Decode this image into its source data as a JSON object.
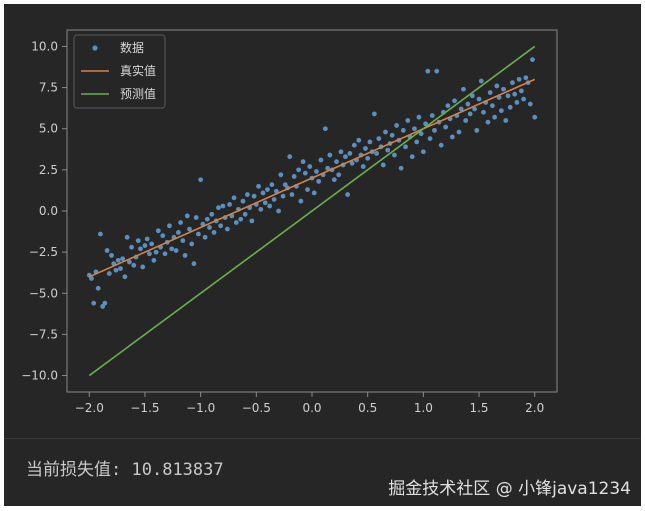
{
  "loss": {
    "label": "当前损失值:",
    "value": "10.813837"
  },
  "watermark": "掘金技术社区 @ 小锋java1234",
  "colors": {
    "background": "#262626",
    "data_points": "#5b8fc0",
    "true_line": "#d9823e",
    "pred_line": "#6ab04c",
    "axes": "#8a8a8a",
    "text": "#cfcfcf"
  },
  "chart_data": {
    "type": "scatter",
    "title": "",
    "xlabel": "",
    "ylabel": "",
    "xlim": [
      -2.2,
      2.2
    ],
    "ylim": [
      -11,
      11
    ],
    "xticks": [
      -2.0,
      -1.5,
      -1.0,
      -0.5,
      0.0,
      0.5,
      1.0,
      1.5,
      2.0
    ],
    "xtick_labels": [
      "−2.0",
      "−1.5",
      "−1.0",
      "−0.5",
      "0.0",
      "0.5",
      "1.0",
      "1.5",
      "2.0"
    ],
    "yticks": [
      10.0,
      7.5,
      5.0,
      2.5,
      0.0,
      -2.5,
      -5.0,
      -7.5,
      -10.0
    ],
    "ytick_labels": [
      "10.0",
      "7.5",
      "5.0",
      "2.5",
      "0.0",
      "−2.5",
      "−5.0",
      "−7.5",
      "−10.0"
    ],
    "grid": false,
    "legend_position": "top-left",
    "series": [
      {
        "name": "数据",
        "type": "scatter",
        "points": [
          [
            -2.0,
            -3.9
          ],
          [
            -1.98,
            -4.1
          ],
          [
            -1.96,
            -5.6
          ],
          [
            -1.94,
            -3.7
          ],
          [
            -1.92,
            -4.7
          ],
          [
            -1.9,
            -1.4
          ],
          [
            -1.88,
            -5.8
          ],
          [
            -1.86,
            -5.6
          ],
          [
            -1.84,
            -2.4
          ],
          [
            -1.82,
            -3.8
          ],
          [
            -1.8,
            -2.7
          ],
          [
            -1.78,
            -3.2
          ],
          [
            -1.76,
            -3.6
          ],
          [
            -1.74,
            -3.0
          ],
          [
            -1.72,
            -3.5
          ],
          [
            -1.7,
            -2.9
          ],
          [
            -1.68,
            -4.0
          ],
          [
            -1.66,
            -1.6
          ],
          [
            -1.64,
            -3.1
          ],
          [
            -1.62,
            -2.2
          ],
          [
            -1.6,
            -3.3
          ],
          [
            -1.58,
            -2.8
          ],
          [
            -1.56,
            -1.8
          ],
          [
            -1.54,
            -2.3
          ],
          [
            -1.52,
            -3.4
          ],
          [
            -1.5,
            -2.1
          ],
          [
            -1.48,
            -1.7
          ],
          [
            -1.46,
            -2.6
          ],
          [
            -1.44,
            -2.0
          ],
          [
            -1.42,
            -3.0
          ],
          [
            -1.4,
            -2.5
          ],
          [
            -1.38,
            -1.2
          ],
          [
            -1.36,
            -2.2
          ],
          [
            -1.34,
            -1.5
          ],
          [
            -1.32,
            -2.6
          ],
          [
            -1.3,
            -1.9
          ],
          [
            -1.28,
            -0.9
          ],
          [
            -1.26,
            -2.3
          ],
          [
            -1.24,
            -1.6
          ],
          [
            -1.22,
            -2.4
          ],
          [
            -1.2,
            -1.3
          ],
          [
            -1.18,
            -0.7
          ],
          [
            -1.16,
            -1.8
          ],
          [
            -1.14,
            -2.7
          ],
          [
            -1.12,
            -0.3
          ],
          [
            -1.1,
            -1.1
          ],
          [
            -1.08,
            -2.0
          ],
          [
            -1.06,
            -3.2
          ],
          [
            -1.04,
            -0.4
          ],
          [
            -1.02,
            -1.4
          ],
          [
            -1.0,
            1.9
          ],
          [
            -0.98,
            -0.8
          ],
          [
            -0.96,
            -1.6
          ],
          [
            -0.94,
            -0.5
          ],
          [
            -0.92,
            -1.0
          ],
          [
            -0.9,
            -0.2
          ],
          [
            -0.88,
            -1.3
          ],
          [
            -0.86,
            -0.6
          ],
          [
            -0.84,
            0.2
          ],
          [
            -0.82,
            -0.9
          ],
          [
            -0.8,
            0.3
          ],
          [
            -0.78,
            -0.4
          ],
          [
            -0.76,
            -1.1
          ],
          [
            -0.74,
            0.4
          ],
          [
            -0.72,
            -0.3
          ],
          [
            -0.7,
            0.8
          ],
          [
            -0.68,
            -0.7
          ],
          [
            -0.66,
            0.1
          ],
          [
            -0.64,
            -0.5
          ],
          [
            -0.62,
            0.6
          ],
          [
            -0.6,
            -0.2
          ],
          [
            -0.58,
            1.0
          ],
          [
            -0.56,
            0.2
          ],
          [
            -0.54,
            -0.6
          ],
          [
            -0.52,
            0.9
          ],
          [
            -0.5,
            0.4
          ],
          [
            -0.48,
            1.5
          ],
          [
            -0.46,
            0.1
          ],
          [
            -0.44,
            1.1
          ],
          [
            -0.42,
            0.5
          ],
          [
            -0.4,
            1.3
          ],
          [
            -0.38,
            0.3
          ],
          [
            -0.36,
            1.6
          ],
          [
            -0.34,
            0.7
          ],
          [
            -0.32,
            1.2
          ],
          [
            -0.3,
            0.0
          ],
          [
            -0.28,
            2.2
          ],
          [
            -0.26,
            0.9
          ],
          [
            -0.24,
            1.6
          ],
          [
            -0.22,
            1.4
          ],
          [
            -0.2,
            3.3
          ],
          [
            -0.18,
            1.0
          ],
          [
            -0.16,
            2.1
          ],
          [
            -0.14,
            1.5
          ],
          [
            -0.12,
            2.5
          ],
          [
            -0.1,
            0.6
          ],
          [
            -0.08,
            3.0
          ],
          [
            -0.06,
            2.3
          ],
          [
            -0.04,
            1.3
          ],
          [
            -0.02,
            2.7
          ],
          [
            0.0,
            2.0
          ],
          [
            0.02,
            1.1
          ],
          [
            0.04,
            2.4
          ],
          [
            0.06,
            1.8
          ],
          [
            0.08,
            3.1
          ],
          [
            0.1,
            2.2
          ],
          [
            0.12,
            5.0
          ],
          [
            0.14,
            2.6
          ],
          [
            0.16,
            3.4
          ],
          [
            0.18,
            2.5
          ],
          [
            0.2,
            1.9
          ],
          [
            0.22,
            3.0
          ],
          [
            0.24,
            2.2
          ],
          [
            0.26,
            3.6
          ],
          [
            0.28,
            2.8
          ],
          [
            0.3,
            3.3
          ],
          [
            0.32,
            1.0
          ],
          [
            0.34,
            3.5
          ],
          [
            0.36,
            2.9
          ],
          [
            0.38,
            4.0
          ],
          [
            0.4,
            3.1
          ],
          [
            0.42,
            4.3
          ],
          [
            0.44,
            3.4
          ],
          [
            0.46,
            2.7
          ],
          [
            0.48,
            3.8
          ],
          [
            0.5,
            3.2
          ],
          [
            0.52,
            4.2
          ],
          [
            0.54,
            3.6
          ],
          [
            0.56,
            5.9
          ],
          [
            0.58,
            3.5
          ],
          [
            0.6,
            4.4
          ],
          [
            0.62,
            3.9
          ],
          [
            0.64,
            2.8
          ],
          [
            0.66,
            4.8
          ],
          [
            0.68,
            3.7
          ],
          [
            0.7,
            4.1
          ],
          [
            0.72,
            4.6
          ],
          [
            0.74,
            3.4
          ],
          [
            0.76,
            5.2
          ],
          [
            0.78,
            4.3
          ],
          [
            0.8,
            2.6
          ],
          [
            0.82,
            4.9
          ],
          [
            0.84,
            3.9
          ],
          [
            0.86,
            5.5
          ],
          [
            0.88,
            4.5
          ],
          [
            0.9,
            3.3
          ],
          [
            0.92,
            5.0
          ],
          [
            0.94,
            4.2
          ],
          [
            0.96,
            5.7
          ],
          [
            0.98,
            4.7
          ],
          [
            1.0,
            3.6
          ],
          [
            1.02,
            5.3
          ],
          [
            1.04,
            8.5
          ],
          [
            1.06,
            4.4
          ],
          [
            1.08,
            5.8
          ],
          [
            1.1,
            4.9
          ],
          [
            1.12,
            8.5
          ],
          [
            1.14,
            5.4
          ],
          [
            1.16,
            4.0
          ],
          [
            1.18,
            6.0
          ],
          [
            1.2,
            5.1
          ],
          [
            1.22,
            6.4
          ],
          [
            1.24,
            5.6
          ],
          [
            1.26,
            4.5
          ],
          [
            1.28,
            6.7
          ],
          [
            1.3,
            5.8
          ],
          [
            1.32,
            4.8
          ],
          [
            1.34,
            6.2
          ],
          [
            1.36,
            7.4
          ],
          [
            1.38,
            5.5
          ],
          [
            1.4,
            6.5
          ],
          [
            1.42,
            5.9
          ],
          [
            1.44,
            7.0
          ],
          [
            1.46,
            6.2
          ],
          [
            1.48,
            4.9
          ],
          [
            1.5,
            6.8
          ],
          [
            1.52,
            7.9
          ],
          [
            1.54,
            6.0
          ],
          [
            1.56,
            6.6
          ],
          [
            1.58,
            5.4
          ],
          [
            1.6,
            7.2
          ],
          [
            1.62,
            6.4
          ],
          [
            1.64,
            5.7
          ],
          [
            1.66,
            7.6
          ],
          [
            1.68,
            6.9
          ],
          [
            1.7,
            6.1
          ],
          [
            1.72,
            7.4
          ],
          [
            1.74,
            5.5
          ],
          [
            1.76,
            7.0
          ],
          [
            1.78,
            6.3
          ],
          [
            1.8,
            7.8
          ],
          [
            1.82,
            7.1
          ],
          [
            1.84,
            6.6
          ],
          [
            1.86,
            8.0
          ],
          [
            1.88,
            7.3
          ],
          [
            1.9,
            6.8
          ],
          [
            1.92,
            8.1
          ],
          [
            1.94,
            7.8
          ],
          [
            1.96,
            6.5
          ],
          [
            1.98,
            9.2
          ],
          [
            2.0,
            5.7
          ]
        ]
      },
      {
        "name": "真实值",
        "type": "line",
        "x": [
          -2.0,
          2.0
        ],
        "y": [
          -4.0,
          8.0
        ]
      },
      {
        "name": "预测值",
        "type": "line",
        "x": [
          -2.0,
          2.0
        ],
        "y": [
          -10.0,
          10.0
        ]
      }
    ]
  }
}
